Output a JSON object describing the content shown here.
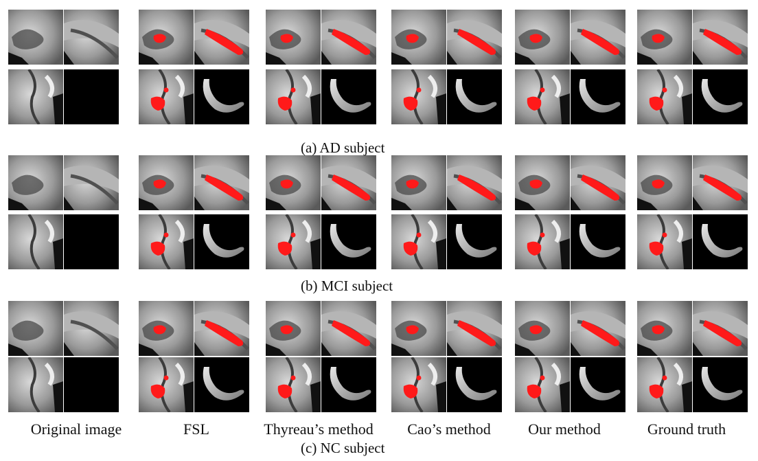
{
  "figure": {
    "rows": [
      {
        "caption": "(a)  AD subject",
        "slice_img": "mri-slice",
        "render_img": "hippocampus-3d-render"
      },
      {
        "caption": "(b)  MCI subject",
        "slice_img": "mri-slice",
        "render_img": "hippocampus-3d-render"
      },
      {
        "caption": "(c)  NC subject",
        "slice_img": "mri-slice",
        "render_img": "hippocampus-3d-render"
      }
    ],
    "columns": [
      {
        "label": "Original image",
        "segmentation": false
      },
      {
        "label": "FSL",
        "segmentation": true
      },
      {
        "label": "Thyreau’s method",
        "segmentation": true
      },
      {
        "label": "Cao’s method",
        "segmentation": true
      },
      {
        "label": "Our method",
        "segmentation": true
      },
      {
        "label": "Ground truth",
        "segmentation": true
      }
    ],
    "colors": {
      "segmentation": "#ff1a1a",
      "mri_bg": "#8a8a8a",
      "render_bg": "#000000"
    }
  }
}
